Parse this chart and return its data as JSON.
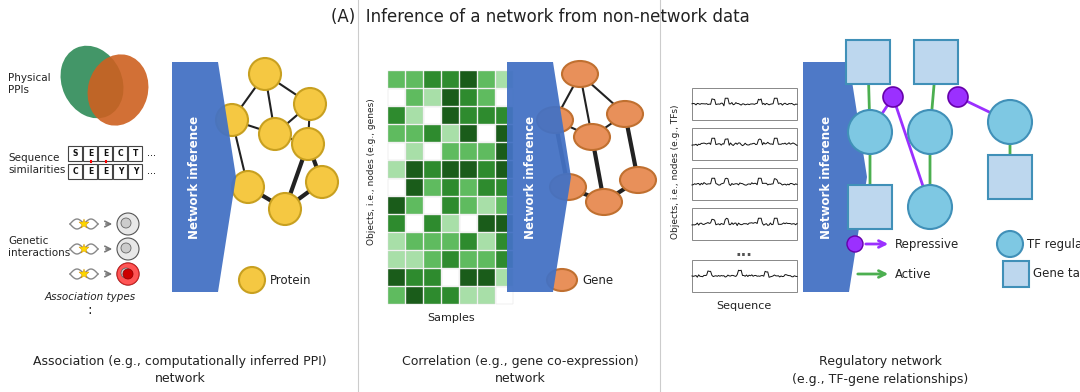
{
  "title": "(A)  Inference of a network from non-network data",
  "title_fontsize": 12,
  "bg_color": "#ffffff",
  "section1_label": "Association (e.g., computationally inferred PPI)\nnetwork",
  "section2_label": "Correlation (e.g., gene co-expression)\nnetwork",
  "section3_label": "Regulatory network\n(e.g., TF-gene relationships)",
  "banner_color": "#4472C4",
  "protein_color": "#F5C842",
  "protein_edge": "#C8A020",
  "gene_color": "#E8905A",
  "gene_edge": "#C07030",
  "tf_color": "#7EC8E3",
  "tf_edge": "#4090B8",
  "gt_color": "#BDD7EE",
  "gt_edge": "#4090B8",
  "repressive_color": "#9B30FF",
  "active_color": "#4CAF50",
  "text_color": "#222222",
  "label_fs": 9,
  "small_fs": 7.5,
  "tiny_fs": 6.5
}
